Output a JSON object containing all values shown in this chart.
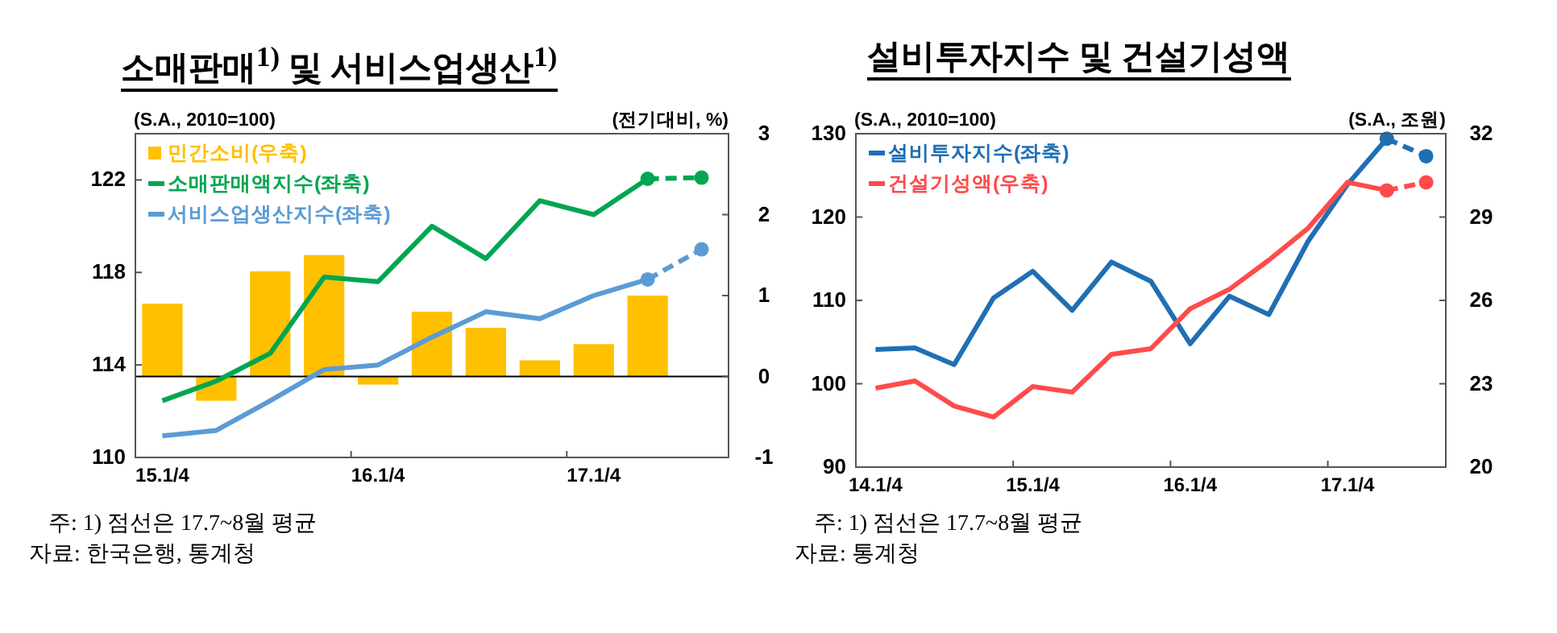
{
  "chart_data": [
    {
      "type": "line",
      "title": "소매판매$^{1)}$ 및 서비스업생산$^{1)}$",
      "ylabel": "(S.A., 2010=100)",
      "y2label": "(전기대비, %)",
      "categories": [
        "15.1/4",
        null,
        null,
        null,
        "16.1/4",
        null,
        null,
        null,
        "17.1/4",
        null,
        null
      ],
      "ylim": [
        110,
        124
      ],
      "yticks": [
        110,
        114,
        118,
        122
      ],
      "y2lim": [
        -1,
        3
      ],
      "y2ticks": [
        -1,
        0,
        1,
        2,
        3
      ],
      "legend": "top left",
      "series": [
        {
          "name": "민간소비(우축)",
          "type": "bar",
          "axis": "y2",
          "color": "#ffc000",
          "values": [
            0.9,
            -0.3,
            1.3,
            1.5,
            -0.1,
            0.8,
            0.6,
            0.2,
            0.4,
            1.0,
            null
          ]
        },
        {
          "name": "소매판매액지수(좌축)",
          "color": "#00a651",
          "values": [
            112.45,
            113.3,
            114.5,
            117.8,
            117.6,
            120.0,
            118.6,
            121.1,
            120.5,
            122.05,
            null
          ]
        },
        {
          "color": "#00a651",
          "line_style": "dashed",
          "marker": "circle",
          "values": [
            null,
            null,
            null,
            null,
            null,
            null,
            null,
            null,
            null,
            122.05,
            122.1
          ]
        },
        {
          "name": "서비스업생산지수(좌축)",
          "color": "#5b9bd5",
          "values": [
            110.93,
            111.17,
            112.45,
            113.8,
            114.0,
            115.2,
            116.3,
            116.0,
            117.0,
            117.7,
            null
          ]
        },
        {
          "color": "#5b9bd5",
          "line_style": "dashed",
          "marker": "circle",
          "values": [
            null,
            null,
            null,
            null,
            null,
            null,
            null,
            null,
            null,
            117.7,
            119.0
          ]
        }
      ],
      "annotations": [
        "주: 1) 점선은 17.7~8월 평균",
        "자료: 한국은행, 통계청"
      ]
    },
    {
      "type": "line",
      "title": "설비투자지수 및 건설기성액",
      "ylabel": "(S.A., 2010=100)",
      "y2label": "(S.A., 조원)",
      "categories": [
        "14.1/4",
        null,
        null,
        null,
        "15.1/4",
        null,
        null,
        null,
        "16.1/4",
        null,
        null,
        null,
        "17.1/4",
        null,
        null
      ],
      "ylim": [
        90,
        130
      ],
      "yticks": [
        90,
        100,
        110,
        120,
        130
      ],
      "y2lim": [
        20,
        32
      ],
      "y2ticks": [
        20,
        23,
        26,
        29,
        32
      ],
      "legend": "top left",
      "series": [
        {
          "name": "설비투자지수(좌축)",
          "color": "#1f6fb4",
          "values": [
            104.1,
            104.3,
            102.3,
            110.3,
            113.5,
            108.8,
            114.6,
            112.3,
            104.8,
            110.5,
            108.3,
            117.1,
            123.9,
            129.4,
            null
          ]
        },
        {
          "color": "#1f6fb4",
          "line_style": "dashed",
          "marker": "circle",
          "values": [
            null,
            null,
            null,
            null,
            null,
            null,
            null,
            null,
            null,
            null,
            null,
            null,
            null,
            129.4,
            127.3
          ]
        },
        {
          "name": "건설기성액(우축)",
          "axis": "y2",
          "color": "#ff4b4b",
          "values": [
            22.84,
            23.1,
            22.2,
            21.8,
            22.9,
            22.7,
            24.06,
            24.26,
            25.7,
            26.4,
            27.45,
            28.6,
            30.25,
            29.96,
            null
          ]
        },
        {
          "axis": "y2",
          "color": "#ff4b4b",
          "line_style": "dashed",
          "marker": "circle",
          "values": [
            null,
            null,
            null,
            null,
            null,
            null,
            null,
            null,
            null,
            null,
            null,
            null,
            null,
            29.96,
            30.25
          ]
        }
      ],
      "annotations": [
        "주: 1) 점선은 17.7~8월 평균",
        "자료: 통계청"
      ]
    }
  ]
}
